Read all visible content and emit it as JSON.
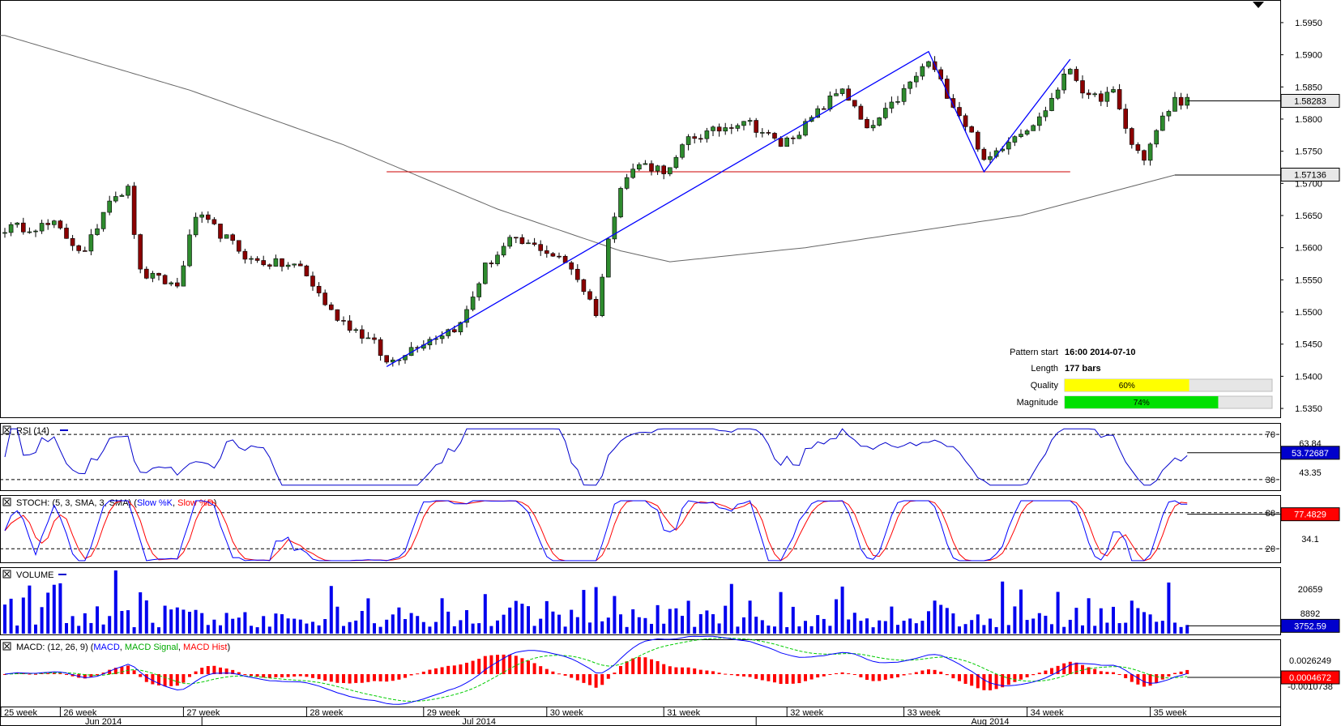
{
  "colors": {
    "up": "#2e8b2e",
    "down": "#8b0000",
    "pattern_line": "#0000ff",
    "level_line": "#cc0000",
    "ma_line": "#666666",
    "rsi": "#0000cc",
    "stoch_k": "#0000ff",
    "stoch_d": "#ff0000",
    "volume": "#0000ee",
    "macd": "#0000ff",
    "macd_signal": "#00cc00",
    "macd_hist": "#ff0000",
    "quality_fill": "#ffff00",
    "magnitude_fill": "#00e000",
    "badge_blue": "#0000cc"
  },
  "chart_data": {
    "type": "candlestick",
    "price_axis": {
      "ticks": [
        "1.5950",
        "1.5900",
        "1.5850",
        "1.5800",
        "1.5750",
        "1.5700",
        "1.5650",
        "1.5600",
        "1.5550",
        "1.5500",
        "1.5450",
        "1.5400",
        "1.5350"
      ],
      "range": [
        1.534,
        1.5965
      ],
      "current_price": "1.58283",
      "level_price": "1.57136"
    },
    "bar_count": 200,
    "pattern_points": [
      {
        "bar": 62,
        "price": 1.5415
      },
      {
        "bar": 150,
        "price": 1.5905
      },
      {
        "bar": 159,
        "price": 1.5718
      },
      {
        "bar": 173,
        "price": 1.5893
      }
    ],
    "horizontal_level": {
      "from_bar": 62,
      "to_bar": 173,
      "price": 1.5718
    },
    "ma_anchor_points": [
      {
        "bar": 0,
        "price": 1.593
      },
      {
        "bar": 30,
        "price": 1.5845
      },
      {
        "bar": 55,
        "price": 1.576
      },
      {
        "bar": 80,
        "price": 1.566
      },
      {
        "bar": 100,
        "price": 1.5595
      },
      {
        "bar": 108,
        "price": 1.5578
      },
      {
        "bar": 130,
        "price": 1.56
      },
      {
        "bar": 165,
        "price": 1.565
      },
      {
        "bar": 190,
        "price": 1.5713
      }
    ],
    "time_axis": {
      "weeks": [
        {
          "label": "25 week",
          "bar": 0
        },
        {
          "label": "26 week",
          "bar": 9
        },
        {
          "label": "27 week",
          "bar": 29
        },
        {
          "label": "28 week",
          "bar": 49
        },
        {
          "label": "29 week",
          "bar": 68
        },
        {
          "label": "30 week",
          "bar": 88
        },
        {
          "label": "31 week",
          "bar": 107
        },
        {
          "label": "32 week",
          "bar": 127
        },
        {
          "label": "33 week",
          "bar": 146
        },
        {
          "label": "34 week",
          "bar": 166
        },
        {
          "label": "35 week",
          "bar": 186
        }
      ],
      "months": [
        {
          "label": "Jun 2014",
          "bar": 16
        },
        {
          "label": "Jul 2014",
          "bar": 77
        },
        {
          "label": "Aug 2014",
          "bar": 160
        }
      ],
      "month_separators": [
        32,
        122
      ]
    },
    "pattern_info": {
      "pattern_start_label": "Pattern start",
      "pattern_start_value": "16:00 2014-07-10",
      "length_label": "Length",
      "length_value": "177 bars",
      "quality_label": "Quality",
      "quality_value": "60%",
      "quality_fraction": 0.6,
      "magnitude_label": "Magnitude",
      "magnitude_value": "74%",
      "magnitude_fraction": 0.74
    },
    "rsi": {
      "title": "RSI (14)",
      "levels": [
        "70",
        "30"
      ],
      "level_values": [
        70,
        30
      ],
      "axis_labels": [
        "63.84",
        "43.35"
      ],
      "current": "53.72687",
      "current_value": 53.73,
      "range": [
        22,
        78
      ]
    },
    "stoch": {
      "title": "STOCH: (5, 3, SMA, 3, SMA)",
      "k_name": "Slow %K",
      "d_name": "Slow %D",
      "levels": [
        "80",
        "20"
      ],
      "level_values": [
        80,
        20
      ],
      "axis_label": "34.1",
      "current": "77.4829",
      "current_value": 77.48,
      "range": [
        0,
        100
      ]
    },
    "volume": {
      "title": "VOLUME",
      "axis_labels": [
        "20659",
        "8892"
      ],
      "current": "3752.59",
      "max": 30000
    },
    "macd": {
      "title": "MACD: (12, 26, 9)",
      "macd_name": "MACD",
      "signal_name": "MACD Signal",
      "hist_name": "MACD Hist",
      "axis_labels": [
        "0.0026249",
        "-0.0010738"
      ],
      "current": "0.0004672"
    }
  }
}
